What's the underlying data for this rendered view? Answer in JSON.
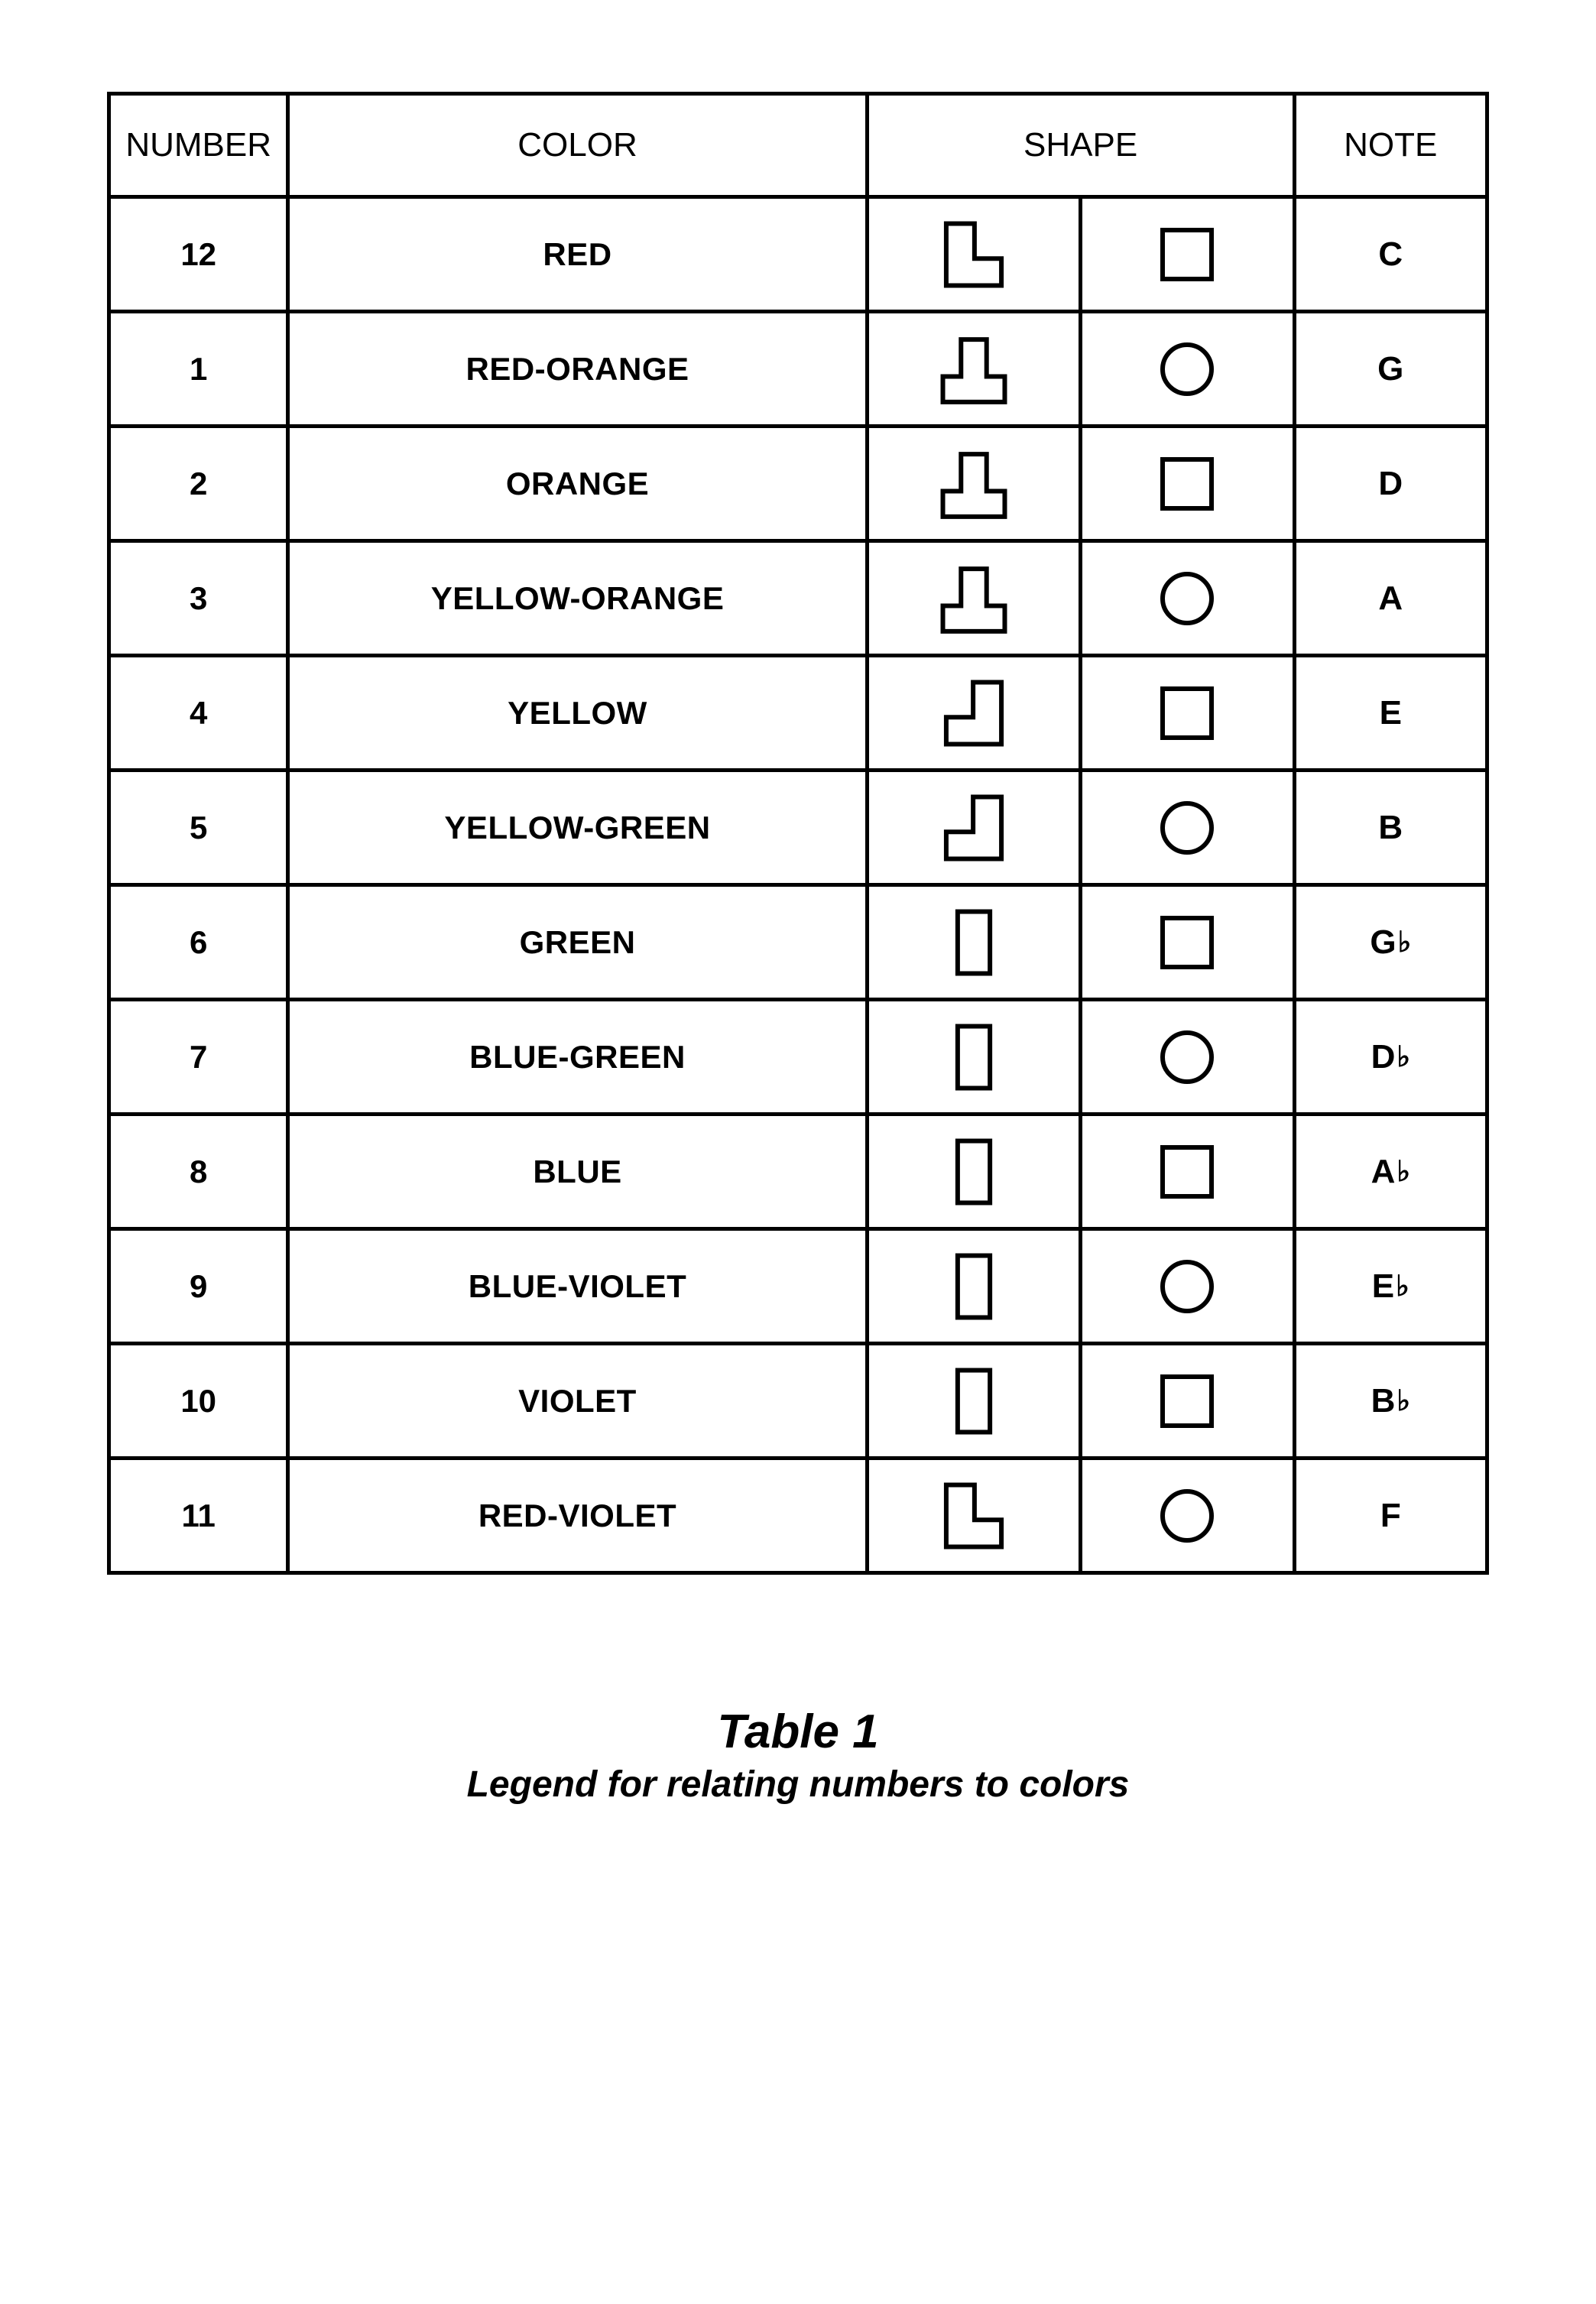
{
  "table": {
    "headers": {
      "number": "NUMBER",
      "color": "COLOR",
      "shape": "SHAPE",
      "note": "NOTE"
    },
    "border_color": "#000000",
    "border_width": 5,
    "background_color": "#ffffff",
    "text_color": "#000000",
    "header_fontsize": 44,
    "cell_fontsize": 42,
    "note_fontsize": 44,
    "shape_stroke_width": 6,
    "rows": [
      {
        "number": "12",
        "color": "RED",
        "shape1": "L_SE",
        "shape2": "square",
        "note": "C",
        "flat": false
      },
      {
        "number": "1",
        "color": "RED-ORANGE",
        "shape1": "T_INV",
        "shape2": "circle",
        "note": "G",
        "flat": false
      },
      {
        "number": "2",
        "color": "ORANGE",
        "shape1": "T_INV",
        "shape2": "square",
        "note": "D",
        "flat": false
      },
      {
        "number": "3",
        "color": "YELLOW-ORANGE",
        "shape1": "T_INV",
        "shape2": "circle",
        "note": "A",
        "flat": false
      },
      {
        "number": "4",
        "color": "YELLOW",
        "shape1": "L_SW",
        "shape2": "square",
        "note": "E",
        "flat": false
      },
      {
        "number": "5",
        "color": "YELLOW-GREEN",
        "shape1": "L_SW",
        "shape2": "circle",
        "note": "B",
        "flat": false
      },
      {
        "number": "6",
        "color": "GREEN",
        "shape1": "RECT_V",
        "shape2": "square",
        "note": "G",
        "flat": true
      },
      {
        "number": "7",
        "color": "BLUE-GREEN",
        "shape1": "RECT_V",
        "shape2": "circle",
        "note": "D",
        "flat": true
      },
      {
        "number": "8",
        "color": "BLUE",
        "shape1": "RECT_V",
        "shape2": "square",
        "note": "A",
        "flat": true
      },
      {
        "number": "9",
        "color": "BLUE-VIOLET",
        "shape1": "RECT_V",
        "shape2": "circle",
        "note": "E",
        "flat": true
      },
      {
        "number": "10",
        "color": "VIOLET",
        "shape1": "RECT_V",
        "shape2": "square",
        "note": "B",
        "flat": true
      },
      {
        "number": "11",
        "color": "RED-VIOLET",
        "shape1": "L_SE",
        "shape2": "circle",
        "note": "F",
        "flat": false
      }
    ]
  },
  "caption": {
    "title": "Table 1",
    "subtitle": "Legend for relating numbers to colors",
    "title_fontsize": 62,
    "subtitle_fontsize": 48
  },
  "shapes": {
    "square_size": 64,
    "circle_size": 64,
    "piece_box": 100
  }
}
